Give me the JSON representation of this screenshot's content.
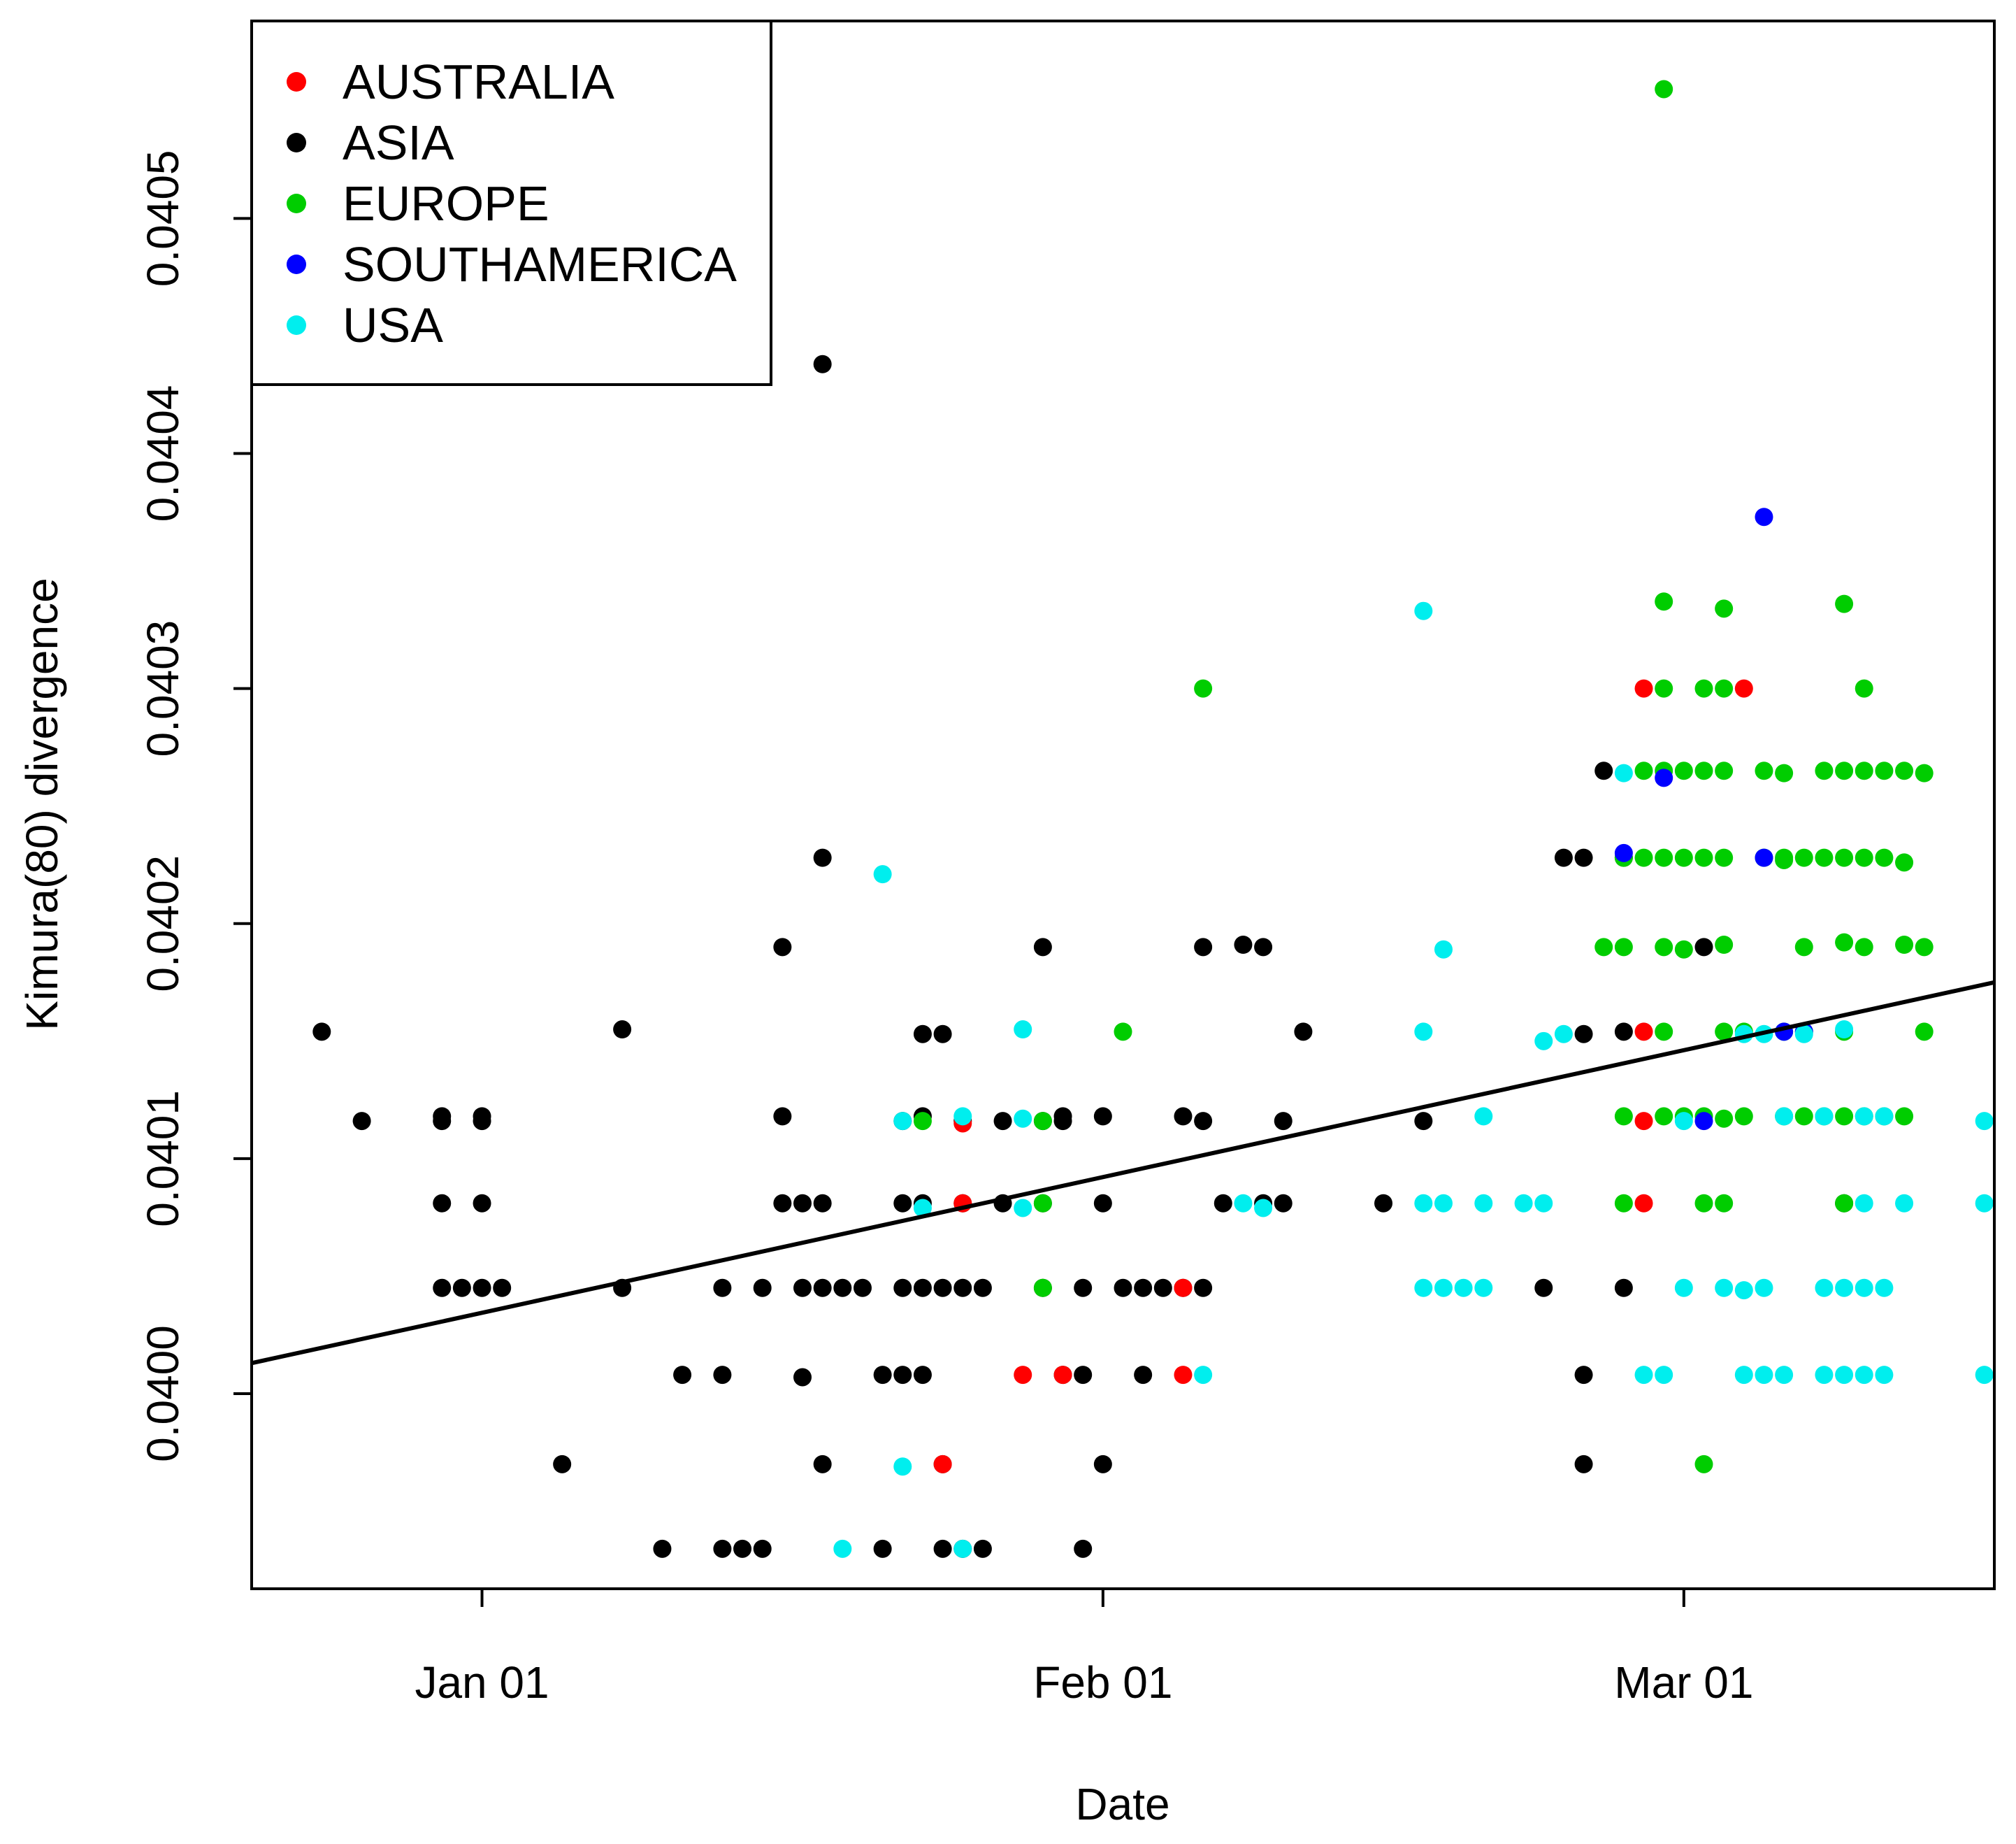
{
  "chart_data": {
    "type": "scatter",
    "title": "",
    "xlabel": "Date",
    "ylabel": "Kimura(80) divergence",
    "x_units": "days since Jan 01",
    "xlim": [
      -11.5,
      75.5
    ],
    "ylim": [
      0.039917,
      0.040584
    ],
    "x_ticks": [
      {
        "value": 0,
        "label": "Jan 01"
      },
      {
        "value": 31,
        "label": "Feb 01"
      },
      {
        "value": 60,
        "label": "Mar 01"
      }
    ],
    "y_ticks": [
      {
        "value": 0.04,
        "label": "0.0400"
      },
      {
        "value": 0.0401,
        "label": "0.0401"
      },
      {
        "value": 0.0402,
        "label": "0.0402"
      },
      {
        "value": 0.0403,
        "label": "0.0403"
      },
      {
        "value": 0.0404,
        "label": "0.0404"
      },
      {
        "value": 0.0405,
        "label": "0.0405"
      }
    ],
    "legend": {
      "position": "top-left",
      "entries": [
        {
          "name": "AUSTRALIA",
          "color": "#ff0000"
        },
        {
          "name": "ASIA",
          "color": "#000000"
        },
        {
          "name": "EUROPE",
          "color": "#00cd00"
        },
        {
          "name": "SOUTHAMERICA",
          "color": "#0000ff"
        },
        {
          "name": "USA",
          "color": "#00eeee"
        }
      ]
    },
    "trend_line": {
      "x": [
        -11.5,
        75.5
      ],
      "y": [
        0.040013,
        0.040175
      ],
      "color": "#000000"
    },
    "series": [
      {
        "name": "ASIA",
        "color": "#000000",
        "points": [
          [
            -8,
            0.040154
          ],
          [
            -6,
            0.040116
          ],
          [
            -2,
            0.040118
          ],
          [
            -2,
            0.040116
          ],
          [
            -2,
            0.040081
          ],
          [
            -2,
            0.040045
          ],
          [
            0,
            0.040118
          ],
          [
            0,
            0.040116
          ],
          [
            0,
            0.040081
          ],
          [
            -1,
            0.040045
          ],
          [
            0,
            0.040045
          ],
          [
            1,
            0.040045
          ],
          [
            4,
            0.03997
          ],
          [
            7,
            0.040155
          ],
          [
            7,
            0.040045
          ],
          [
            9,
            0.039934
          ],
          [
            10,
            0.040008
          ],
          [
            12,
            0.039934
          ],
          [
            12,
            0.040008
          ],
          [
            12,
            0.040045
          ],
          [
            13,
            0.039934
          ],
          [
            14,
            0.039934
          ],
          [
            14,
            0.040045
          ],
          [
            15,
            0.040118
          ],
          [
            15,
            0.040081
          ],
          [
            15,
            0.04019
          ],
          [
            16,
            0.040081
          ],
          [
            16,
            0.040045
          ],
          [
            16,
            0.040007
          ],
          [
            17,
            0.040045
          ],
          [
            17,
            0.040081
          ],
          [
            17,
            0.03997
          ],
          [
            17,
            0.040228
          ],
          [
            17,
            0.040438
          ],
          [
            18,
            0.040045
          ],
          [
            19,
            0.040045
          ],
          [
            20,
            0.040008
          ],
          [
            20,
            0.039934
          ],
          [
            21,
            0.040081
          ],
          [
            21,
            0.040045
          ],
          [
            21,
            0.040008
          ],
          [
            21,
            0.040116
          ],
          [
            22,
            0.040118
          ],
          [
            22,
            0.040081
          ],
          [
            22,
            0.040045
          ],
          [
            22,
            0.040153
          ],
          [
            22,
            0.040008
          ],
          [
            23,
            0.040153
          ],
          [
            23,
            0.040045
          ],
          [
            23,
            0.039934
          ],
          [
            23,
            0.03997
          ],
          [
            24,
            0.040116
          ],
          [
            24,
            0.040081
          ],
          [
            24,
            0.040045
          ],
          [
            24,
            0.039934
          ],
          [
            25,
            0.040045
          ],
          [
            25,
            0.039934
          ],
          [
            26,
            0.040081
          ],
          [
            26,
            0.040116
          ],
          [
            28,
            0.040045
          ],
          [
            28,
            0.040116
          ],
          [
            28,
            0.040081
          ],
          [
            28,
            0.04019
          ],
          [
            29,
            0.040008
          ],
          [
            29,
            0.040118
          ],
          [
            29,
            0.040116
          ],
          [
            30,
            0.040008
          ],
          [
            30,
            0.040045
          ],
          [
            30,
            0.039934
          ],
          [
            31,
            0.040118
          ],
          [
            31,
            0.03997
          ],
          [
            31,
            0.040081
          ],
          [
            32,
            0.040045
          ],
          [
            33,
            0.040045
          ],
          [
            33,
            0.040008
          ],
          [
            34,
            0.040045
          ],
          [
            35,
            0.040045
          ],
          [
            35,
            0.040118
          ],
          [
            36,
            0.040116
          ],
          [
            36,
            0.040045
          ],
          [
            36,
            0.04019
          ],
          [
            37,
            0.040081
          ],
          [
            38,
            0.040191
          ],
          [
            39,
            0.04019
          ],
          [
            39,
            0.040081
          ],
          [
            40,
            0.040116
          ],
          [
            40,
            0.040081
          ],
          [
            41,
            0.040154
          ],
          [
            45,
            0.040081
          ],
          [
            47,
            0.040116
          ],
          [
            53,
            0.040045
          ],
          [
            54,
            0.040228
          ],
          [
            55,
            0.040228
          ],
          [
            55,
            0.040008
          ],
          [
            55,
            0.03997
          ],
          [
            55,
            0.040153
          ],
          [
            56,
            0.040265
          ],
          [
            57,
            0.040045
          ],
          [
            57,
            0.040154
          ],
          [
            57,
            0.040228
          ],
          [
            61,
            0.04019
          ],
          [
            68,
            0.040081
          ]
        ]
      },
      {
        "name": "EUROPE",
        "color": "#00cd00",
        "points": [
          [
            22,
            0.040116
          ],
          [
            28,
            0.040116
          ],
          [
            28,
            0.040081
          ],
          [
            28,
            0.040045
          ],
          [
            32,
            0.040154
          ],
          [
            36,
            0.0403
          ],
          [
            56,
            0.04019
          ],
          [
            57,
            0.04019
          ],
          [
            57,
            0.040228
          ],
          [
            57,
            0.040118
          ],
          [
            57,
            0.040081
          ],
          [
            58,
            0.040228
          ],
          [
            58,
            0.040265
          ],
          [
            59,
            0.040228
          ],
          [
            59,
            0.040265
          ],
          [
            59,
            0.040337
          ],
          [
            59,
            0.0403
          ],
          [
            59,
            0.04019
          ],
          [
            59,
            0.040154
          ],
          [
            59,
            0.040118
          ],
          [
            60,
            0.040265
          ],
          [
            60,
            0.040228
          ],
          [
            60,
            0.040189
          ],
          [
            60,
            0.040118
          ],
          [
            61,
            0.040265
          ],
          [
            61,
            0.040228
          ],
          [
            61,
            0.040081
          ],
          [
            61,
            0.0403
          ],
          [
            61,
            0.03997
          ],
          [
            61,
            0.040118
          ],
          [
            62,
            0.040265
          ],
          [
            62,
            0.040228
          ],
          [
            62,
            0.040191
          ],
          [
            62,
            0.040154
          ],
          [
            62,
            0.040081
          ],
          [
            62,
            0.040117
          ],
          [
            62,
            0.0403
          ],
          [
            62,
            0.040334
          ],
          [
            63,
            0.040154
          ],
          [
            63,
            0.040118
          ],
          [
            64,
            0.040265
          ],
          [
            64,
            0.040228
          ],
          [
            65,
            0.040264
          ],
          [
            65,
            0.040228
          ],
          [
            65,
            0.040154
          ],
          [
            65,
            0.040118
          ],
          [
            65,
            0.040227
          ],
          [
            66,
            0.04019
          ],
          [
            66,
            0.040228
          ],
          [
            66,
            0.040118
          ],
          [
            66,
            0.040154
          ],
          [
            67,
            0.040265
          ],
          [
            67,
            0.040228
          ],
          [
            67,
            0.040118
          ],
          [
            68,
            0.040265
          ],
          [
            68,
            0.040228
          ],
          [
            68,
            0.040154
          ],
          [
            68,
            0.040118
          ],
          [
            68,
            0.040081
          ],
          [
            68,
            0.040192
          ],
          [
            68,
            0.040336
          ],
          [
            69,
            0.040265
          ],
          [
            69,
            0.040228
          ],
          [
            69,
            0.04019
          ],
          [
            69,
            0.040118
          ],
          [
            69,
            0.0403
          ],
          [
            70,
            0.040265
          ],
          [
            70,
            0.040228
          ],
          [
            70,
            0.040118
          ],
          [
            71,
            0.040265
          ],
          [
            71,
            0.040226
          ],
          [
            71,
            0.040191
          ],
          [
            71,
            0.040118
          ],
          [
            72,
            0.040264
          ],
          [
            72,
            0.04019
          ],
          [
            72,
            0.040154
          ],
          [
            59,
            0.040555
          ]
        ]
      },
      {
        "name": "AUSTRALIA",
        "color": "#ff0000",
        "points": [
          [
            23,
            0.03997
          ],
          [
            24,
            0.040115
          ],
          [
            24,
            0.040081
          ],
          [
            27,
            0.040008
          ],
          [
            29,
            0.040008
          ],
          [
            35,
            0.040045
          ],
          [
            35,
            0.040008
          ],
          [
            58,
            0.0403
          ],
          [
            58,
            0.040154
          ],
          [
            58,
            0.040116
          ],
          [
            58,
            0.040081
          ],
          [
            63,
            0.0403
          ]
        ]
      },
      {
        "name": "SOUTHAMERICA",
        "color": "#0000ff",
        "points": [
          [
            57,
            0.04023
          ],
          [
            59,
            0.040262
          ],
          [
            61,
            0.040116
          ],
          [
            64,
            0.040373
          ],
          [
            64,
            0.040228
          ],
          [
            65,
            0.040154
          ],
          [
            66,
            0.040154
          ]
        ]
      },
      {
        "name": "USA",
        "color": "#00eeee",
        "points": [
          [
            18,
            0.039934
          ],
          [
            20,
            0.040221
          ],
          [
            21,
            0.039969
          ],
          [
            21,
            0.040116
          ],
          [
            22,
            0.040079
          ],
          [
            24,
            0.040118
          ],
          [
            24,
            0.039934
          ],
          [
            27,
            0.040155
          ],
          [
            27,
            0.040117
          ],
          [
            27,
            0.040079
          ],
          [
            36,
            0.040008
          ],
          [
            38,
            0.040081
          ],
          [
            39,
            0.040079
          ],
          [
            47,
            0.040333
          ],
          [
            47,
            0.040154
          ],
          [
            47,
            0.040081
          ],
          [
            47,
            0.040045
          ],
          [
            48,
            0.040189
          ],
          [
            48,
            0.040081
          ],
          [
            48,
            0.040045
          ],
          [
            49,
            0.040045
          ],
          [
            50,
            0.040045
          ],
          [
            50,
            0.040118
          ],
          [
            50,
            0.040081
          ],
          [
            52,
            0.040081
          ],
          [
            53,
            0.040081
          ],
          [
            53,
            0.04015
          ],
          [
            54,
            0.040153
          ],
          [
            57,
            0.040264
          ],
          [
            58,
            0.040008
          ],
          [
            59,
            0.040008
          ],
          [
            60,
            0.040116
          ],
          [
            60,
            0.040045
          ],
          [
            62,
            0.040045
          ],
          [
            63,
            0.040044
          ],
          [
            63,
            0.040153
          ],
          [
            63,
            0.040008
          ],
          [
            64,
            0.040153
          ],
          [
            64,
            0.040008
          ],
          [
            64,
            0.040045
          ],
          [
            65,
            0.040118
          ],
          [
            65,
            0.040008
          ],
          [
            66,
            0.040153
          ],
          [
            67,
            0.040118
          ],
          [
            67,
            0.040045
          ],
          [
            67,
            0.040008
          ],
          [
            68,
            0.040155
          ],
          [
            68,
            0.040045
          ],
          [
            68,
            0.040008
          ],
          [
            69,
            0.040118
          ],
          [
            69,
            0.040081
          ],
          [
            69,
            0.040045
          ],
          [
            69,
            0.040008
          ],
          [
            70,
            0.040118
          ],
          [
            70,
            0.040045
          ],
          [
            70,
            0.040008
          ],
          [
            71,
            0.040081
          ],
          [
            75,
            0.040116
          ],
          [
            75,
            0.040081
          ],
          [
            75,
            0.040008
          ]
        ]
      }
    ]
  }
}
